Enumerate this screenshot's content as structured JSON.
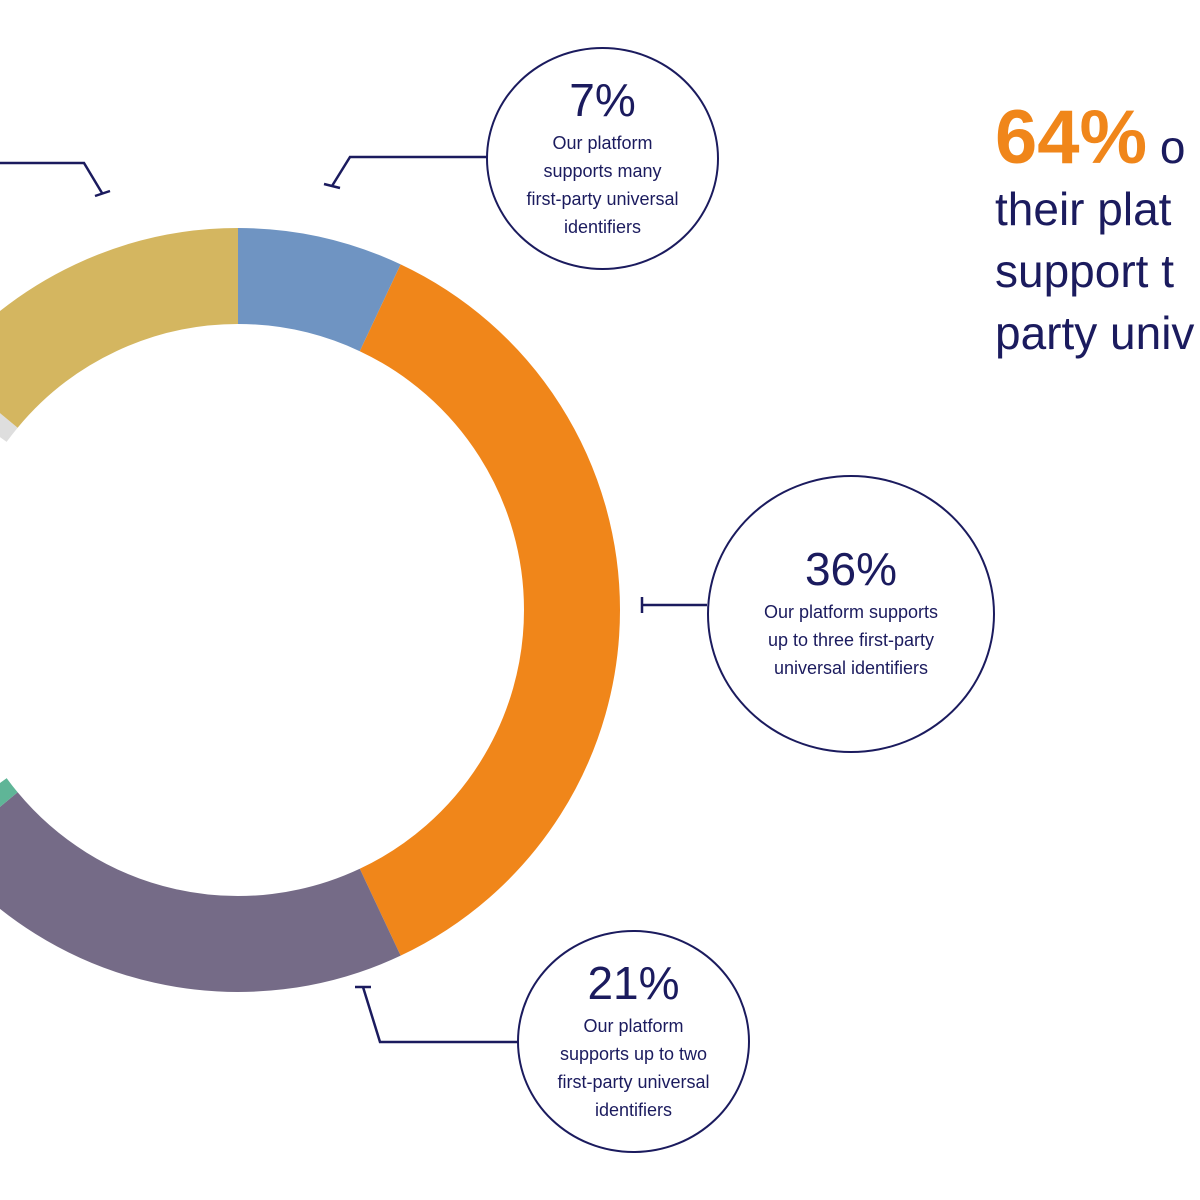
{
  "chart_data": {
    "type": "pie",
    "variant": "donut",
    "slices": [
      {
        "label": "Our platform supports many first-party universal identifiers",
        "value": 7,
        "color": "#6f94c2"
      },
      {
        "label": "Our platform supports up to three first-party universal identifiers",
        "value": 36,
        "color": "#f0861a"
      },
      {
        "label": "Our platform supports up to two first-party universal identifiers",
        "value": 21,
        "color": "#756b87"
      },
      {
        "label": "",
        "value": 1,
        "color": "#5fb597"
      },
      {
        "label": "",
        "value": 20,
        "color": "#ffffff"
      },
      {
        "label": "",
        "value": 1,
        "color": "#dedede"
      },
      {
        "label": "",
        "value": 14,
        "color": "#d4b660"
      }
    ]
  },
  "callouts": {
    "many": {
      "percent": "7%",
      "lines": [
        "Our platform",
        "supports many",
        "first-party universal",
        "identifiers"
      ]
    },
    "three": {
      "percent": "36%",
      "lines": [
        "Our platform supports",
        "up to three first-party",
        "universal identifiers"
      ]
    },
    "two": {
      "percent": "21%",
      "lines": [
        "Our platform",
        "supports up to two",
        "first-party universal",
        "identifiers"
      ]
    }
  },
  "headline": {
    "highlight": "64%",
    "line1_rest": " o",
    "line2": "their plat",
    "line3": "support t",
    "line4": "party univ"
  },
  "colors": {
    "navy": "#1b1b5e",
    "orange": "#f0861a"
  }
}
